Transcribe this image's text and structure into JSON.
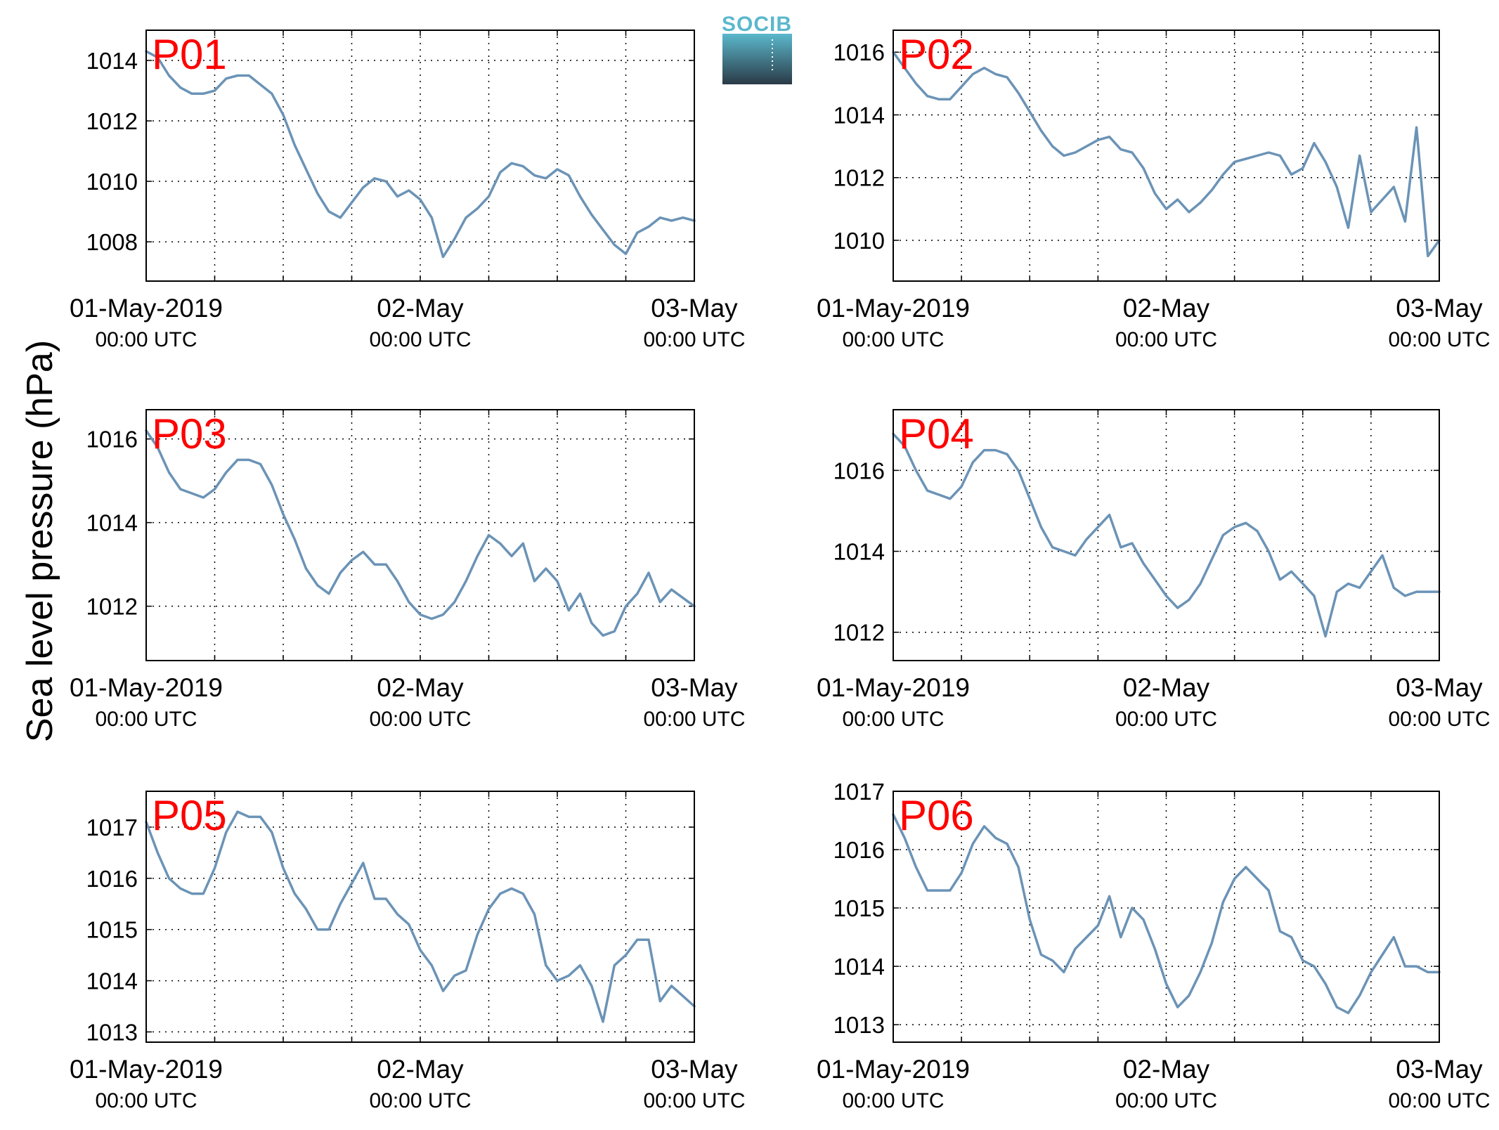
{
  "figure": {
    "ylabel": "Sea level pressure (hPa)",
    "logo_text": "SOCIB",
    "colors": {
      "line": "#6B93B6",
      "panel_label": "#FF0000",
      "logo_top": "#5BB8CC",
      "logo_bottom": "#2A3A46"
    },
    "x_tick_labels": [
      {
        "main": "01-May-2019",
        "sub": "00:00 UTC"
      },
      {
        "main": "02-May",
        "sub": "00:00 UTC"
      },
      {
        "main": "03-May",
        "sub": "00:00 UTC"
      }
    ]
  },
  "chart_data": [
    {
      "type": "line",
      "title": "P01",
      "x_unit": "hours since 01-May-2019 00:00 UTC",
      "xlim": [
        0,
        48
      ],
      "ylim": [
        1006.7,
        1015.0
      ],
      "yticks": [
        1008,
        1010,
        1012,
        1014
      ],
      "grid": true,
      "x": [
        0,
        1,
        2,
        3,
        4,
        5,
        6,
        7,
        8,
        9,
        10,
        11,
        12,
        13,
        14,
        15,
        16,
        17,
        18,
        19,
        20,
        21,
        22,
        23,
        24,
        25,
        26,
        27,
        28,
        29,
        30,
        31,
        32,
        33,
        34,
        35,
        36,
        37,
        38,
        39,
        40,
        41,
        42,
        43,
        44,
        45,
        46,
        47,
        48
      ],
      "y": [
        1014.3,
        1014.1,
        1013.5,
        1013.1,
        1012.9,
        1012.9,
        1013.0,
        1013.4,
        1013.5,
        1013.5,
        1013.2,
        1012.9,
        1012.2,
        1011.2,
        1010.4,
        1009.6,
        1009.0,
        1008.8,
        1009.3,
        1009.8,
        1010.1,
        1010.0,
        1009.5,
        1009.7,
        1009.4,
        1008.8,
        1007.5,
        1008.1,
        1008.8,
        1009.1,
        1009.5,
        1010.3,
        1010.6,
        1010.5,
        1010.2,
        1010.1,
        1010.4,
        1010.2,
        1009.5,
        1008.9,
        1008.4,
        1007.9,
        1007.6,
        1008.3,
        1008.5,
        1008.8,
        1008.7,
        1008.8,
        1008.7
      ]
    },
    {
      "type": "line",
      "title": "P02",
      "x_unit": "hours since 01-May-2019 00:00 UTC",
      "xlim": [
        0,
        48
      ],
      "ylim": [
        1008.7,
        1016.7
      ],
      "yticks": [
        1010,
        1012,
        1014,
        1016
      ],
      "grid": true,
      "x": [
        0,
        1,
        2,
        3,
        4,
        5,
        6,
        7,
        8,
        9,
        10,
        11,
        12,
        13,
        14,
        15,
        16,
        17,
        18,
        19,
        20,
        21,
        22,
        23,
        24,
        25,
        26,
        27,
        28,
        29,
        30,
        31,
        32,
        33,
        34,
        35,
        36,
        37,
        38,
        39,
        40,
        41,
        42,
        43,
        44,
        45,
        46,
        47,
        48
      ],
      "y": [
        1016.0,
        1015.5,
        1015.0,
        1014.6,
        1014.5,
        1014.5,
        1014.9,
        1015.3,
        1015.5,
        1015.3,
        1015.2,
        1014.7,
        1014.1,
        1013.5,
        1013.0,
        1012.7,
        1012.8,
        1013.0,
        1013.2,
        1013.3,
        1012.9,
        1012.8,
        1012.3,
        1011.5,
        1011.0,
        1011.3,
        1010.9,
        1011.2,
        1011.6,
        1012.1,
        1012.5,
        1012.6,
        1012.7,
        1012.8,
        1012.7,
        1012.1,
        1012.3,
        1013.1,
        1012.5,
        1011.7,
        1010.4,
        1012.7,
        1010.9,
        1011.3,
        1011.7,
        1010.6,
        1013.6,
        1009.5,
        1010.0
      ]
    },
    {
      "type": "line",
      "title": "P03",
      "x_unit": "hours since 01-May-2019 00:00 UTC",
      "xlim": [
        0,
        48
      ],
      "ylim": [
        1010.7,
        1016.7
      ],
      "yticks": [
        1012,
        1014,
        1016
      ],
      "grid": true,
      "x": [
        0,
        1,
        2,
        3,
        4,
        5,
        6,
        7,
        8,
        9,
        10,
        11,
        12,
        13,
        14,
        15,
        16,
        17,
        18,
        19,
        20,
        21,
        22,
        23,
        24,
        25,
        26,
        27,
        28,
        29,
        30,
        31,
        32,
        33,
        34,
        35,
        36,
        37,
        38,
        39,
        40,
        41,
        42,
        43,
        44,
        45,
        46,
        47,
        48
      ],
      "y": [
        1016.2,
        1015.8,
        1015.2,
        1014.8,
        1014.7,
        1014.6,
        1014.8,
        1015.2,
        1015.5,
        1015.5,
        1015.4,
        1014.9,
        1014.2,
        1013.6,
        1012.9,
        1012.5,
        1012.3,
        1012.8,
        1013.1,
        1013.3,
        1013.0,
        1013.0,
        1012.6,
        1012.1,
        1011.8,
        1011.7,
        1011.8,
        1012.1,
        1012.6,
        1013.2,
        1013.7,
        1013.5,
        1013.2,
        1013.5,
        1012.6,
        1012.9,
        1012.6,
        1011.9,
        1012.3,
        1011.6,
        1011.3,
        1011.4,
        1012.0,
        1012.3,
        1012.8,
        1012.1,
        1012.4,
        1012.2,
        1012.0
      ]
    },
    {
      "type": "line",
      "title": "P04",
      "x_unit": "hours since 01-May-2019 00:00 UTC",
      "xlim": [
        0,
        48
      ],
      "ylim": [
        1011.3,
        1017.5
      ],
      "yticks": [
        1012,
        1014,
        1016
      ],
      "grid": true,
      "x": [
        0,
        1,
        2,
        3,
        4,
        5,
        6,
        7,
        8,
        9,
        10,
        11,
        12,
        13,
        14,
        15,
        16,
        17,
        18,
        19,
        20,
        21,
        22,
        23,
        24,
        25,
        26,
        27,
        28,
        29,
        30,
        31,
        32,
        33,
        34,
        35,
        36,
        37,
        38,
        39,
        40,
        41,
        42,
        43,
        44,
        45,
        46,
        47,
        48
      ],
      "y": [
        1016.9,
        1016.6,
        1016.0,
        1015.5,
        1015.4,
        1015.3,
        1015.6,
        1016.2,
        1016.5,
        1016.5,
        1016.4,
        1016.0,
        1015.3,
        1014.6,
        1014.1,
        1014.0,
        1013.9,
        1014.3,
        1014.6,
        1014.9,
        1014.1,
        1014.2,
        1013.7,
        1013.3,
        1012.9,
        1012.6,
        1012.8,
        1013.2,
        1013.8,
        1014.4,
        1014.6,
        1014.7,
        1014.5,
        1014.0,
        1013.3,
        1013.5,
        1013.2,
        1012.9,
        1011.9,
        1013.0,
        1013.2,
        1013.1,
        1013.5,
        1013.9,
        1013.1,
        1012.9,
        1013.0,
        1013.0,
        1013.0
      ]
    },
    {
      "type": "line",
      "title": "P05",
      "x_unit": "hours since 01-May-2019 00:00 UTC",
      "xlim": [
        0,
        48
      ],
      "ylim": [
        1012.8,
        1017.7
      ],
      "yticks": [
        1013,
        1014,
        1015,
        1016,
        1017
      ],
      "grid": true,
      "x": [
        0,
        1,
        2,
        3,
        4,
        5,
        6,
        7,
        8,
        9,
        10,
        11,
        12,
        13,
        14,
        15,
        16,
        17,
        18,
        19,
        20,
        21,
        22,
        23,
        24,
        25,
        26,
        27,
        28,
        29,
        30,
        31,
        32,
        33,
        34,
        35,
        36,
        37,
        38,
        39,
        40,
        41,
        42,
        43,
        44,
        45,
        46,
        47,
        48
      ],
      "y": [
        1017.1,
        1016.5,
        1016.0,
        1015.8,
        1015.7,
        1015.7,
        1016.2,
        1016.9,
        1017.3,
        1017.2,
        1017.2,
        1016.9,
        1016.2,
        1015.7,
        1015.4,
        1015.0,
        1015.0,
        1015.5,
        1015.9,
        1016.3,
        1015.6,
        1015.6,
        1015.3,
        1015.1,
        1014.6,
        1014.3,
        1013.8,
        1014.1,
        1014.2,
        1014.9,
        1015.4,
        1015.7,
        1015.8,
        1015.7,
        1015.3,
        1014.3,
        1014.0,
        1014.1,
        1014.3,
        1013.9,
        1013.2,
        1014.3,
        1014.5,
        1014.8,
        1014.8,
        1013.6,
        1013.9,
        1013.7,
        1013.5
      ]
    },
    {
      "type": "line",
      "title": "P06",
      "x_unit": "hours since 01-May-2019 00:00 UTC",
      "xlim": [
        0,
        48
      ],
      "ylim": [
        1012.7,
        1017.0
      ],
      "yticks": [
        1013,
        1014,
        1015,
        1016,
        1017
      ],
      "grid": true,
      "x": [
        0,
        1,
        2,
        3,
        4,
        5,
        6,
        7,
        8,
        9,
        10,
        11,
        12,
        13,
        14,
        15,
        16,
        17,
        18,
        19,
        20,
        21,
        22,
        23,
        24,
        25,
        26,
        27,
        28,
        29,
        30,
        31,
        32,
        33,
        34,
        35,
        36,
        37,
        38,
        39,
        40,
        41,
        42,
        43,
        44,
        45,
        46,
        47,
        48
      ],
      "y": [
        1016.6,
        1016.2,
        1015.7,
        1015.3,
        1015.3,
        1015.3,
        1015.6,
        1016.1,
        1016.4,
        1016.2,
        1016.1,
        1015.7,
        1014.8,
        1014.2,
        1014.1,
        1013.9,
        1014.3,
        1014.5,
        1014.7,
        1015.2,
        1014.5,
        1015.0,
        1014.8,
        1014.3,
        1013.7,
        1013.3,
        1013.5,
        1013.9,
        1014.4,
        1015.1,
        1015.5,
        1015.7,
        1015.5,
        1015.3,
        1014.6,
        1014.5,
        1014.1,
        1014.0,
        1013.7,
        1013.3,
        1013.2,
        1013.5,
        1013.9,
        1014.2,
        1014.5,
        1014.0,
        1014.0,
        1013.9,
        1013.9
      ]
    }
  ]
}
